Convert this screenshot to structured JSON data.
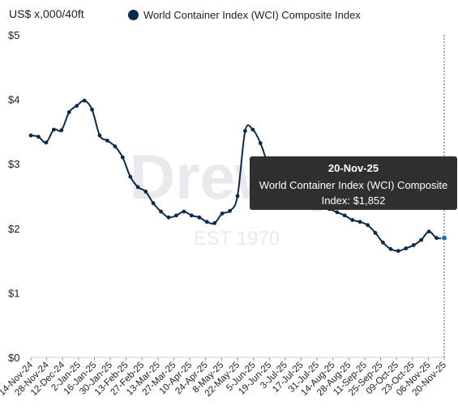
{
  "chart_data": {
    "type": "line",
    "ylabel": "US$ x,000/40ft",
    "ylim": [
      0,
      5
    ],
    "yticks": [
      "$0",
      "$1",
      "$2",
      "$3",
      "$4",
      "$5"
    ],
    "xtick_labels": [
      "14-Nov-24",
      "28-Nov-24",
      "12-Dec-24",
      "2-Jan-25",
      "16-Jan-25",
      "30-Jan-25",
      "13-Feb-25",
      "27-Feb-25",
      "13-Mar-25",
      "27-Mar-25",
      "10-Apr-25",
      "24-Apr-25",
      "8-May-25",
      "22-May-25",
      "5-Jun-25",
      "19-Jun-25",
      "3-Jul-25",
      "17-Jul-25",
      "31-Jul-25",
      "14-Aug-25",
      "28-Aug-25",
      "11-Sep-25",
      "25-Sep-25",
      "09-Oct-25",
      "23-Oct-25",
      "06-Nov-25",
      "20-Nov-25"
    ],
    "series": [
      {
        "name": "World Container Index (WCI) Composite Index",
        "color": "#0b2a4a",
        "values": [
          3.44,
          3.42,
          3.33,
          3.53,
          3.52,
          3.8,
          3.9,
          3.98,
          3.84,
          3.44,
          3.36,
          3.27,
          3.1,
          2.8,
          2.64,
          2.57,
          2.39,
          2.26,
          2.17,
          2.2,
          2.26,
          2.2,
          2.17,
          2.1,
          2.08,
          2.23,
          2.27,
          2.5,
          3.51,
          3.53,
          3.32,
          2.99,
          2.8,
          2.6,
          2.51,
          2.45,
          2.4,
          2.38,
          2.35,
          2.3,
          2.25,
          2.2,
          2.13,
          2.1,
          2.05,
          1.93,
          1.78,
          1.68,
          1.65,
          1.69,
          1.74,
          1.82,
          1.95,
          1.85,
          1.852
        ]
      }
    ]
  },
  "legend": {
    "label": "World Container Index (WCI) Composite Index"
  },
  "watermark": {
    "brand": "Drewry",
    "est": "EST 1970"
  },
  "tooltip": {
    "date": "20-Nov-25",
    "series": "World Container Index (WCI) Composite",
    "value": "Index: $1,852"
  }
}
